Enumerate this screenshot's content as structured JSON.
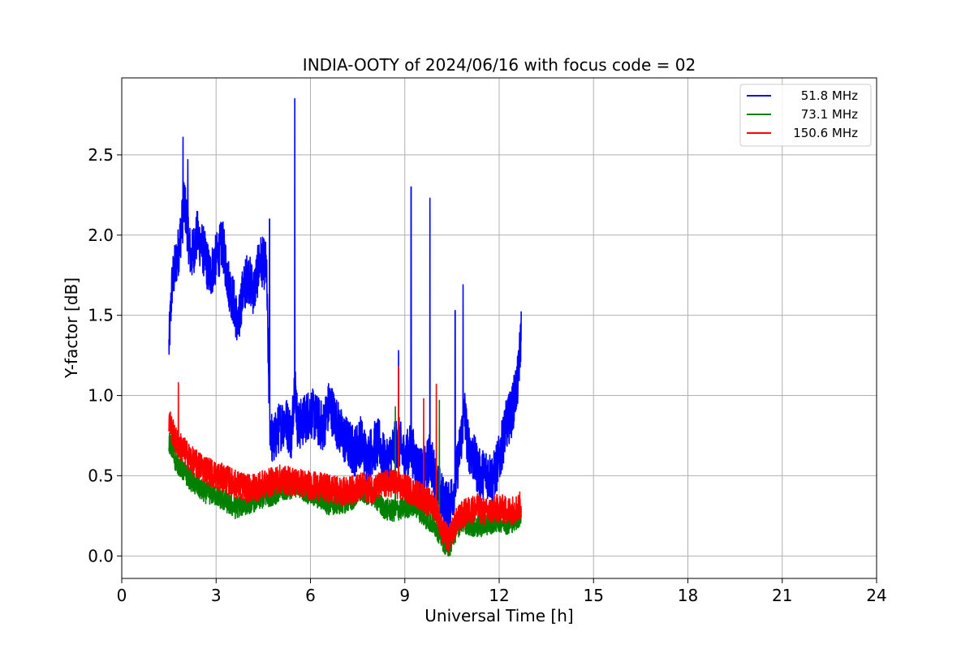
{
  "chart_data": {
    "type": "line",
    "title": "INDIA-OOTY of 2024/06/16 with focus code = 02",
    "xlabel": "Universal Time [h]",
    "ylabel": "Y-factor [dB]",
    "xlim": [
      0,
      24
    ],
    "ylim": [
      -0.14,
      2.98
    ],
    "xticks": [
      0,
      3,
      6,
      9,
      12,
      15,
      18,
      21,
      24
    ],
    "xtick_labels": [
      "0",
      "3",
      "6",
      "9",
      "12",
      "15",
      "18",
      "21",
      "24"
    ],
    "yticks": [
      0.0,
      0.5,
      1.0,
      1.5,
      2.0,
      2.5
    ],
    "ytick_labels": [
      "0.0",
      "0.5",
      "1.0",
      "1.5",
      "2.0",
      "2.5"
    ],
    "grid": true,
    "legend_position": "top-right",
    "series": [
      {
        "name": "51.8 MHz",
        "color": "#0000ff",
        "x": [
          1.5,
          1.6,
          1.8,
          2.0,
          2.2,
          2.4,
          2.6,
          2.8,
          3.0,
          3.2,
          3.4,
          3.6,
          3.7,
          3.8,
          4.0,
          4.2,
          4.4,
          4.6,
          4.7,
          4.8,
          5.0,
          5.2,
          5.4,
          5.5,
          5.6,
          5.8,
          6.0,
          6.2,
          6.4,
          6.6,
          6.8,
          7.0,
          7.2,
          7.4,
          7.6,
          7.8,
          8.0,
          8.2,
          8.4,
          8.6,
          8.8,
          9.0,
          9.2,
          9.4,
          9.6,
          9.8,
          10.0,
          10.2,
          10.4,
          10.6,
          10.8,
          10.9,
          11.0,
          11.2,
          11.4,
          11.6,
          11.8,
          12.0,
          12.2,
          12.4,
          12.6,
          12.7
        ],
        "y": [
          1.3,
          1.7,
          1.9,
          2.2,
          1.85,
          2.0,
          1.9,
          1.75,
          1.85,
          1.95,
          1.7,
          1.55,
          1.4,
          1.6,
          1.75,
          1.65,
          1.85,
          1.8,
          0.85,
          0.7,
          0.8,
          0.85,
          0.75,
          1.1,
          0.8,
          0.85,
          0.9,
          0.85,
          0.8,
          0.95,
          0.85,
          0.75,
          0.7,
          0.65,
          0.72,
          0.6,
          0.68,
          0.7,
          0.55,
          0.65,
          0.72,
          0.6,
          0.68,
          0.55,
          0.5,
          0.62,
          0.45,
          0.35,
          0.3,
          0.45,
          0.75,
          0.9,
          0.7,
          0.6,
          0.5,
          0.52,
          0.48,
          0.6,
          0.8,
          0.9,
          1.1,
          1.4
        ]
      },
      {
        "name": "73.1 MHz",
        "color": "#008000",
        "x": [
          1.5,
          1.7,
          2.0,
          2.3,
          2.6,
          3.0,
          3.3,
          3.6,
          4.0,
          4.3,
          4.6,
          5.0,
          5.3,
          5.6,
          6.0,
          6.3,
          6.6,
          7.0,
          7.3,
          7.6,
          8.0,
          8.3,
          8.6,
          9.0,
          9.3,
          9.6,
          10.0,
          10.2,
          10.4,
          10.6,
          10.8,
          11.0,
          11.3,
          11.6,
          12.0,
          12.3,
          12.6,
          12.7
        ],
        "y": [
          0.72,
          0.6,
          0.52,
          0.45,
          0.4,
          0.38,
          0.34,
          0.3,
          0.33,
          0.35,
          0.37,
          0.4,
          0.42,
          0.44,
          0.38,
          0.36,
          0.32,
          0.33,
          0.35,
          0.4,
          0.38,
          0.3,
          0.28,
          0.3,
          0.32,
          0.25,
          0.18,
          0.1,
          0.05,
          0.15,
          0.22,
          0.2,
          0.18,
          0.2,
          0.22,
          0.2,
          0.24,
          0.25
        ]
      },
      {
        "name": "150.6 MHz",
        "color": "#ff0000",
        "x": [
          1.5,
          1.7,
          2.0,
          2.3,
          2.6,
          3.0,
          3.3,
          3.6,
          4.0,
          4.3,
          4.6,
          5.0,
          5.3,
          5.6,
          6.0,
          6.3,
          6.6,
          7.0,
          7.3,
          7.6,
          8.0,
          8.3,
          8.6,
          9.0,
          9.3,
          9.6,
          10.0,
          10.2,
          10.4,
          10.6,
          10.8,
          11.0,
          11.3,
          11.6,
          12.0,
          12.3,
          12.6,
          12.7
        ],
        "y": [
          0.85,
          0.72,
          0.65,
          0.58,
          0.55,
          0.5,
          0.48,
          0.45,
          0.42,
          0.43,
          0.45,
          0.48,
          0.47,
          0.46,
          0.44,
          0.43,
          0.42,
          0.4,
          0.41,
          0.43,
          0.42,
          0.44,
          0.46,
          0.42,
          0.4,
          0.36,
          0.3,
          0.15,
          0.1,
          0.2,
          0.25,
          0.28,
          0.3,
          0.27,
          0.3,
          0.28,
          0.3,
          0.32
        ]
      }
    ],
    "spikes": [
      {
        "series": 0,
        "x": 5.5,
        "y": 2.85
      },
      {
        "series": 0,
        "x": 9.2,
        "y": 2.3
      },
      {
        "series": 0,
        "x": 9.8,
        "y": 2.23
      },
      {
        "series": 0,
        "x": 10.6,
        "y": 1.53
      },
      {
        "series": 0,
        "x": 10.85,
        "y": 1.69
      },
      {
        "series": 0,
        "x": 8.8,
        "y": 1.28
      },
      {
        "series": 0,
        "x": 1.95,
        "y": 2.61
      },
      {
        "series": 0,
        "x": 2.1,
        "y": 2.47
      },
      {
        "series": 0,
        "x": 4.7,
        "y": 2.1
      },
      {
        "series": 2,
        "x": 1.8,
        "y": 1.08
      },
      {
        "series": 2,
        "x": 8.8,
        "y": 1.18
      },
      {
        "series": 2,
        "x": 10.0,
        "y": 1.07
      },
      {
        "series": 2,
        "x": 9.6,
        "y": 0.98
      },
      {
        "series": 1,
        "x": 8.7,
        "y": 0.93
      },
      {
        "series": 1,
        "x": 10.1,
        "y": 0.97
      }
    ]
  }
}
